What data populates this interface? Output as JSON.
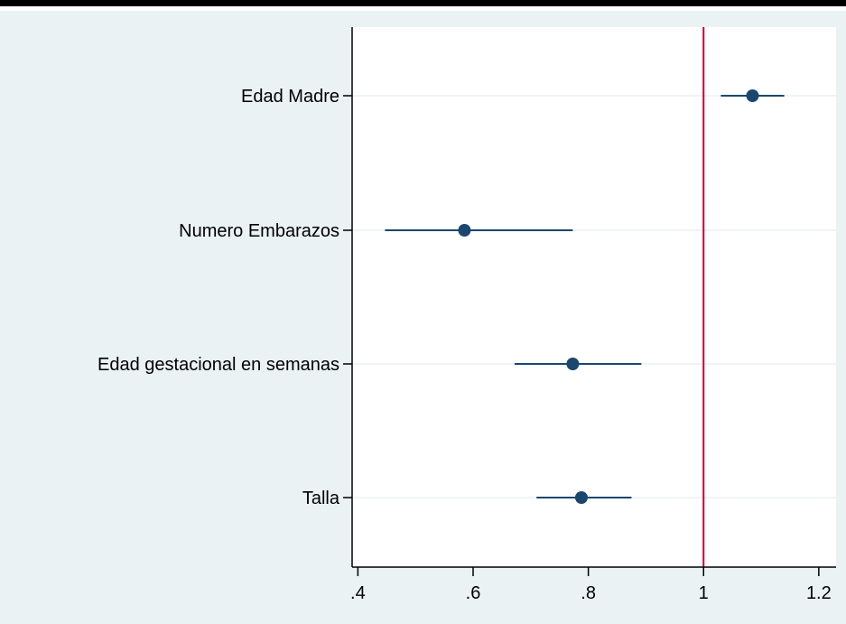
{
  "chart_data": {
    "type": "scatter",
    "subtype": "coefficient-plot",
    "title": "",
    "xlabel": "",
    "ylabel": "",
    "xlim": [
      0.39,
      1.23
    ],
    "x_ticks": [
      0.4,
      0.6,
      0.8,
      1.0,
      1.2
    ],
    "x_tick_labels": [
      ".4",
      ".6",
      ".8",
      "1",
      "1.2"
    ],
    "reference_line_x": 1,
    "grid": "horizontal",
    "legend": "none",
    "categories": [
      "Edad Madre",
      "Numero Embarazos",
      "Edad gestacional en semanas",
      "Talla"
    ],
    "series": [
      {
        "estimates": [
          1.085,
          0.585,
          0.773,
          0.788
        ],
        "ci_low": [
          1.03,
          0.447,
          0.672,
          0.71
        ],
        "ci_high": [
          1.14,
          0.773,
          0.892,
          0.875
        ]
      }
    ],
    "colors": {
      "background": "#eaf2f3",
      "plot_background": "#ffffff",
      "marker": "#1a476f",
      "ci_line": "#1a476f",
      "reference_line": "#c10534",
      "grid": "#eaf2f3",
      "axis": "#000000"
    }
  }
}
